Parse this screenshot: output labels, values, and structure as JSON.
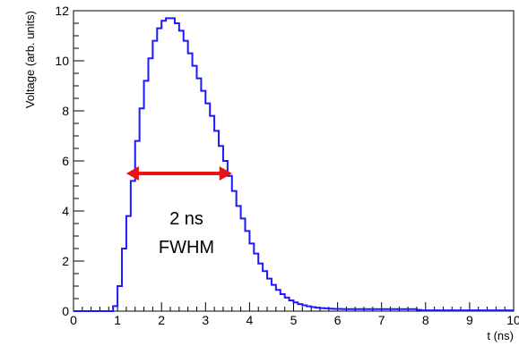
{
  "chart_data": {
    "type": "line",
    "xlabel": "t (ns)",
    "ylabel": "Voltage (arb. units)",
    "xlim": [
      0,
      10
    ],
    "ylim": [
      0,
      12
    ],
    "x_ticks": [
      "0",
      "1",
      "2",
      "3",
      "4",
      "5",
      "6",
      "7",
      "8",
      "9",
      "10"
    ],
    "y_ticks": [
      "0",
      "2",
      "4",
      "6",
      "8",
      "10",
      "12"
    ],
    "grid": false,
    "series": [
      {
        "color": "#1a1aff",
        "x": [
          0,
          0.9,
          1.0,
          1.1,
          1.2,
          1.3,
          1.4,
          1.5,
          1.6,
          1.7,
          1.8,
          1.9,
          2.0,
          2.1,
          2.2,
          2.3,
          2.4,
          2.5,
          2.6,
          2.7,
          2.8,
          2.9,
          3.0,
          3.1,
          3.2,
          3.3,
          3.4,
          3.5,
          3.6,
          3.7,
          3.8,
          3.9,
          4.0,
          4.1,
          4.2,
          4.3,
          4.4,
          4.5,
          4.6,
          4.7,
          4.8,
          4.9,
          5.0,
          5.1,
          5.2,
          5.3,
          5.4,
          5.5,
          5.6,
          5.7,
          5.8,
          5.9,
          6.0,
          6.1,
          6.2,
          6.3,
          7.8,
          7.9,
          10.0
        ],
        "values": [
          0,
          0.2,
          1.0,
          2.5,
          3.8,
          5.2,
          6.8,
          8.1,
          9.2,
          10.1,
          10.8,
          11.3,
          11.6,
          11.7,
          11.7,
          11.5,
          11.2,
          10.8,
          10.3,
          9.8,
          9.3,
          8.8,
          8.3,
          7.8,
          7.2,
          6.6,
          6.0,
          5.4,
          4.8,
          4.2,
          3.7,
          3.2,
          2.7,
          2.3,
          1.9,
          1.6,
          1.3,
          1.05,
          0.85,
          0.68,
          0.54,
          0.43,
          0.35,
          0.28,
          0.23,
          0.19,
          0.16,
          0.14,
          0.12,
          0.11,
          0.1,
          0.09,
          0.09,
          0.08,
          0.08,
          0.08,
          0.05,
          0.03,
          0.03
        ]
      }
    ],
    "annotation": {
      "arrow_from": [
        1.2,
        5.5
      ],
      "arrow_to": [
        3.6,
        5.5
      ],
      "color": "#ee1111",
      "text_line1": "2 ns",
      "text_line2": "FWHM"
    }
  }
}
